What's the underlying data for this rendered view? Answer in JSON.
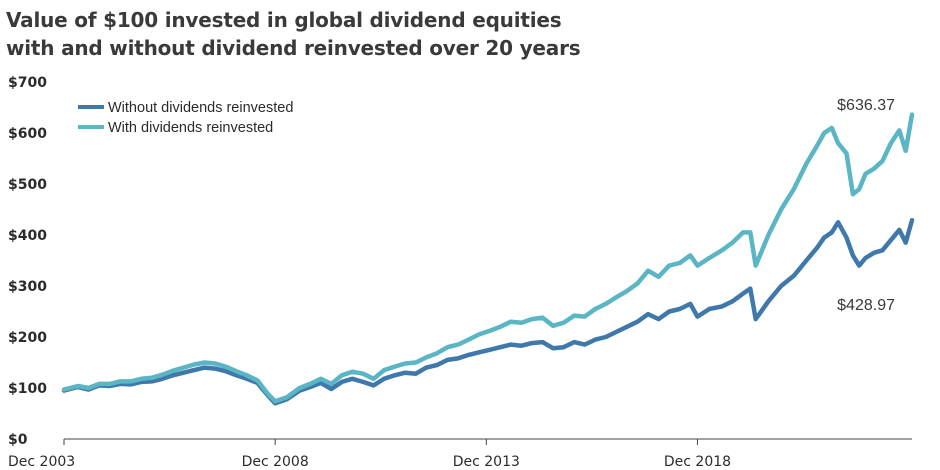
{
  "title_line1": "Value of $100 invested in global dividend equities",
  "title_line2": "with and without dividend reinvested over 20 years",
  "colors": {
    "without": "#3f78ab",
    "with": "#5ab5c4",
    "axis": "#444444"
  },
  "chart_data": {
    "type": "line",
    "title": "Value of $100 invested in global dividend equities with and without dividend reinvested over 20 years",
    "xlabel": "",
    "ylabel": "",
    "ylim": [
      0,
      700
    ],
    "xlim": [
      2003.92,
      2024.0
    ],
    "y_ticks": [
      0,
      100,
      200,
      300,
      400,
      500,
      600,
      700
    ],
    "y_tick_labels": [
      "$0",
      "$100",
      "$200",
      "$300",
      "$400",
      "$500",
      "$600",
      "$700"
    ],
    "x_ticks": [
      2003.92,
      2008.92,
      2013.92,
      2018.92
    ],
    "x_tick_labels": [
      "Dec 2003",
      "Dec 2008",
      "Dec 2013",
      "Dec 2018"
    ],
    "grid": false,
    "legend_position": "top-left",
    "annotations": [
      {
        "series": "With dividends reinvested",
        "text": "$636.37"
      },
      {
        "series": "Without dividends reinvested",
        "text": "$428.97"
      }
    ],
    "series": [
      {
        "name": "Without dividends reinvested",
        "x": [
          2003.92,
          2004.25,
          2004.5,
          2004.75,
          2005.0,
          2005.25,
          2005.5,
          2005.75,
          2006.0,
          2006.25,
          2006.5,
          2006.75,
          2007.0,
          2007.25,
          2007.5,
          2007.75,
          2008.0,
          2008.25,
          2008.5,
          2008.75,
          2008.92,
          2009.2,
          2009.5,
          2009.75,
          2010.0,
          2010.25,
          2010.5,
          2010.75,
          2011.0,
          2011.25,
          2011.5,
          2011.75,
          2012.0,
          2012.25,
          2012.5,
          2012.75,
          2013.0,
          2013.25,
          2013.5,
          2013.75,
          2014.0,
          2014.25,
          2014.5,
          2014.75,
          2015.0,
          2015.25,
          2015.5,
          2015.75,
          2016.0,
          2016.25,
          2016.5,
          2016.75,
          2017.0,
          2017.25,
          2017.5,
          2017.75,
          2018.0,
          2018.25,
          2018.5,
          2018.75,
          2018.92,
          2019.2,
          2019.5,
          2019.75,
          2020.0,
          2020.17,
          2020.3,
          2020.6,
          2020.9,
          2021.2,
          2021.5,
          2021.75,
          2021.92,
          2022.1,
          2022.25,
          2022.45,
          2022.6,
          2022.75,
          2022.9,
          2023.1,
          2023.3,
          2023.5,
          2023.7,
          2023.85,
          2024.0
        ],
        "values": [
          95,
          102,
          97,
          105,
          104,
          108,
          107,
          112,
          113,
          118,
          125,
          130,
          135,
          140,
          138,
          133,
          125,
          118,
          110,
          85,
          70,
          78,
          95,
          102,
          110,
          98,
          112,
          118,
          112,
          105,
          118,
          125,
          130,
          128,
          140,
          145,
          155,
          158,
          165,
          170,
          175,
          180,
          185,
          183,
          188,
          190,
          178,
          180,
          190,
          185,
          195,
          200,
          210,
          220,
          230,
          245,
          235,
          250,
          255,
          265,
          240,
          255,
          260,
          270,
          285,
          295,
          235,
          270,
          300,
          320,
          350,
          375,
          395,
          405,
          425,
          395,
          360,
          340,
          355,
          365,
          370,
          390,
          410,
          385,
          429
        ]
      },
      {
        "name": "With dividends reinvested",
        "x": [
          2003.92,
          2004.25,
          2004.5,
          2004.75,
          2005.0,
          2005.25,
          2005.5,
          2005.75,
          2006.0,
          2006.25,
          2006.5,
          2006.75,
          2007.0,
          2007.25,
          2007.5,
          2007.75,
          2008.0,
          2008.25,
          2008.5,
          2008.75,
          2008.92,
          2009.2,
          2009.5,
          2009.75,
          2010.0,
          2010.25,
          2010.5,
          2010.75,
          2011.0,
          2011.25,
          2011.5,
          2011.75,
          2012.0,
          2012.25,
          2012.5,
          2012.75,
          2013.0,
          2013.25,
          2013.5,
          2013.75,
          2014.0,
          2014.25,
          2014.5,
          2014.75,
          2015.0,
          2015.25,
          2015.5,
          2015.75,
          2016.0,
          2016.25,
          2016.5,
          2016.75,
          2017.0,
          2017.25,
          2017.5,
          2017.75,
          2018.0,
          2018.25,
          2018.5,
          2018.75,
          2018.92,
          2019.2,
          2019.5,
          2019.75,
          2020.0,
          2020.17,
          2020.3,
          2020.6,
          2020.9,
          2021.2,
          2021.5,
          2021.75,
          2021.92,
          2022.1,
          2022.25,
          2022.45,
          2022.6,
          2022.75,
          2022.9,
          2023.1,
          2023.3,
          2023.5,
          2023.7,
          2023.85,
          2024.0
        ],
        "values": [
          97,
          104,
          100,
          108,
          108,
          113,
          113,
          118,
          120,
          126,
          134,
          140,
          146,
          150,
          148,
          142,
          133,
          125,
          115,
          88,
          74,
          82,
          100,
          108,
          118,
          108,
          125,
          132,
          128,
          118,
          135,
          142,
          148,
          150,
          160,
          168,
          180,
          185,
          195,
          205,
          212,
          220,
          230,
          228,
          235,
          238,
          222,
          228,
          242,
          240,
          255,
          265,
          278,
          290,
          305,
          330,
          318,
          340,
          345,
          360,
          340,
          355,
          370,
          385,
          405,
          405,
          340,
          400,
          450,
          490,
          540,
          575,
          600,
          610,
          580,
          560,
          480,
          490,
          520,
          530,
          545,
          580,
          605,
          565,
          636
        ]
      }
    ]
  }
}
